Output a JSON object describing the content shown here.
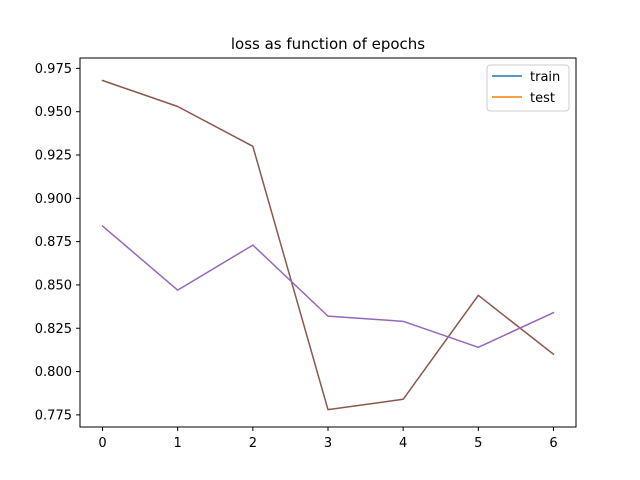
{
  "chart_data": {
    "type": "line",
    "title": "loss as function of epochs",
    "xlabel": "",
    "ylabel": "",
    "x": [
      0,
      1,
      2,
      3,
      4,
      5,
      6
    ],
    "xlim": [
      -0.3,
      6.3
    ],
    "ylim": [
      0.768,
      0.981
    ],
    "xticks": [
      "0",
      "1",
      "2",
      "3",
      "4",
      "5",
      "6"
    ],
    "yticks": [
      "0.775",
      "0.800",
      "0.825",
      "0.850",
      "0.875",
      "0.900",
      "0.925",
      "0.950",
      "0.975"
    ],
    "ytick_values": [
      0.775,
      0.8,
      0.825,
      0.85,
      0.875,
      0.9,
      0.925,
      0.95,
      0.975
    ],
    "grid": false,
    "legend_position": "top-right",
    "legend": [
      {
        "label": "train",
        "color": "#1f77b4"
      },
      {
        "label": "test",
        "color": "#ff7f0e"
      }
    ],
    "series": [
      {
        "name": "train",
        "color": "#1f77b4",
        "values": [
          0.968,
          0.953,
          0.93,
          0.778,
          0.784,
          0.844,
          0.81
        ],
        "visible": false
      },
      {
        "name": "test",
        "color": "#ff7f0e",
        "values": [
          0.884,
          0.847,
          0.873,
          0.832,
          0.829,
          0.814,
          0.834
        ],
        "visible": false
      },
      {
        "color": "#8c564b",
        "values": [
          0.968,
          0.953,
          0.93,
          0.778,
          0.784,
          0.844,
          0.81
        ],
        "visible": true
      },
      {
        "color": "#9467bd",
        "values": [
          0.884,
          0.847,
          0.873,
          0.832,
          0.829,
          0.814,
          0.834
        ],
        "visible": true
      }
    ]
  }
}
